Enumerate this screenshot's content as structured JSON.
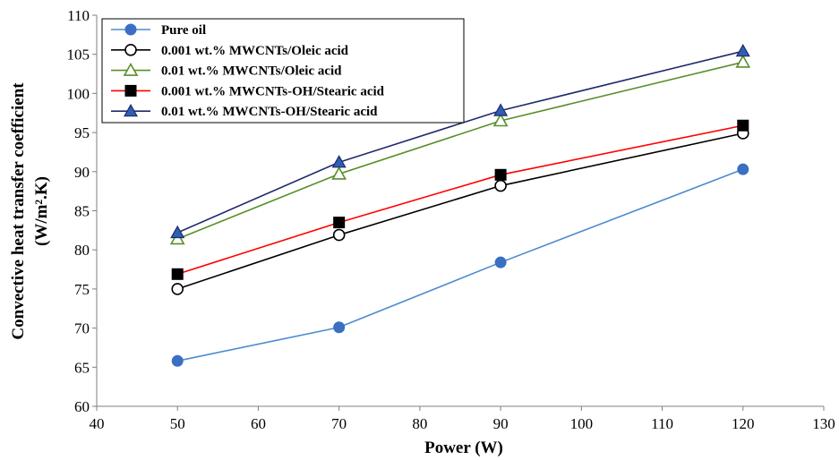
{
  "chart_data": {
    "type": "line",
    "title": "",
    "xlabel": "Power (W)",
    "ylabel_lines": [
      "Convective heat transfer coefficient",
      "(W/m².K)"
    ],
    "xlim": [
      40,
      130
    ],
    "ylim": [
      60,
      110
    ],
    "xticks": [
      40,
      50,
      60,
      70,
      80,
      90,
      100,
      110,
      120,
      130
    ],
    "yticks": [
      60,
      65,
      70,
      75,
      80,
      85,
      90,
      95,
      100,
      105,
      110
    ],
    "grid": false,
    "legend_position": "top-left",
    "x": [
      50,
      70,
      90,
      120
    ],
    "series": [
      {
        "name": "Pure oil",
        "color": "#4a8cd0",
        "marker": "filled-circle",
        "marker_fill": "#3a6fc4",
        "marker_stroke": "#3a6fc4",
        "values": [
          65.8,
          70.1,
          78.4,
          90.3
        ]
      },
      {
        "name": "0.001 wt.% MWCNTs/Oleic acid",
        "color": "#000000",
        "marker": "open-circle",
        "marker_fill": "#ffffff",
        "marker_stroke": "#000000",
        "values": [
          75.0,
          81.9,
          88.2,
          94.9
        ]
      },
      {
        "name": "0.01 wt.% MWCNTs/Oleic acid",
        "color": "#5a8f29",
        "marker": "open-triangle",
        "marker_fill": "#ffffff",
        "marker_stroke": "#5a8f29",
        "values": [
          81.4,
          89.7,
          96.5,
          104.0
        ]
      },
      {
        "name": "0.001 wt.% MWCNTs-OH/Stearic acid",
        "color": "#ff0000",
        "marker": "filled-square",
        "marker_fill": "#000000",
        "marker_stroke": "#000000",
        "values": [
          76.9,
          83.5,
          89.6,
          95.9
        ]
      },
      {
        "name": "0.01 wt.% MWCNTs-OH/Stearic acid",
        "color": "#1f2a6b",
        "marker": "filled-triangle",
        "marker_fill": "#2e5fb3",
        "marker_stroke": "#1f2a6b",
        "values": [
          82.2,
          91.2,
          97.8,
          105.4
        ]
      }
    ]
  }
}
